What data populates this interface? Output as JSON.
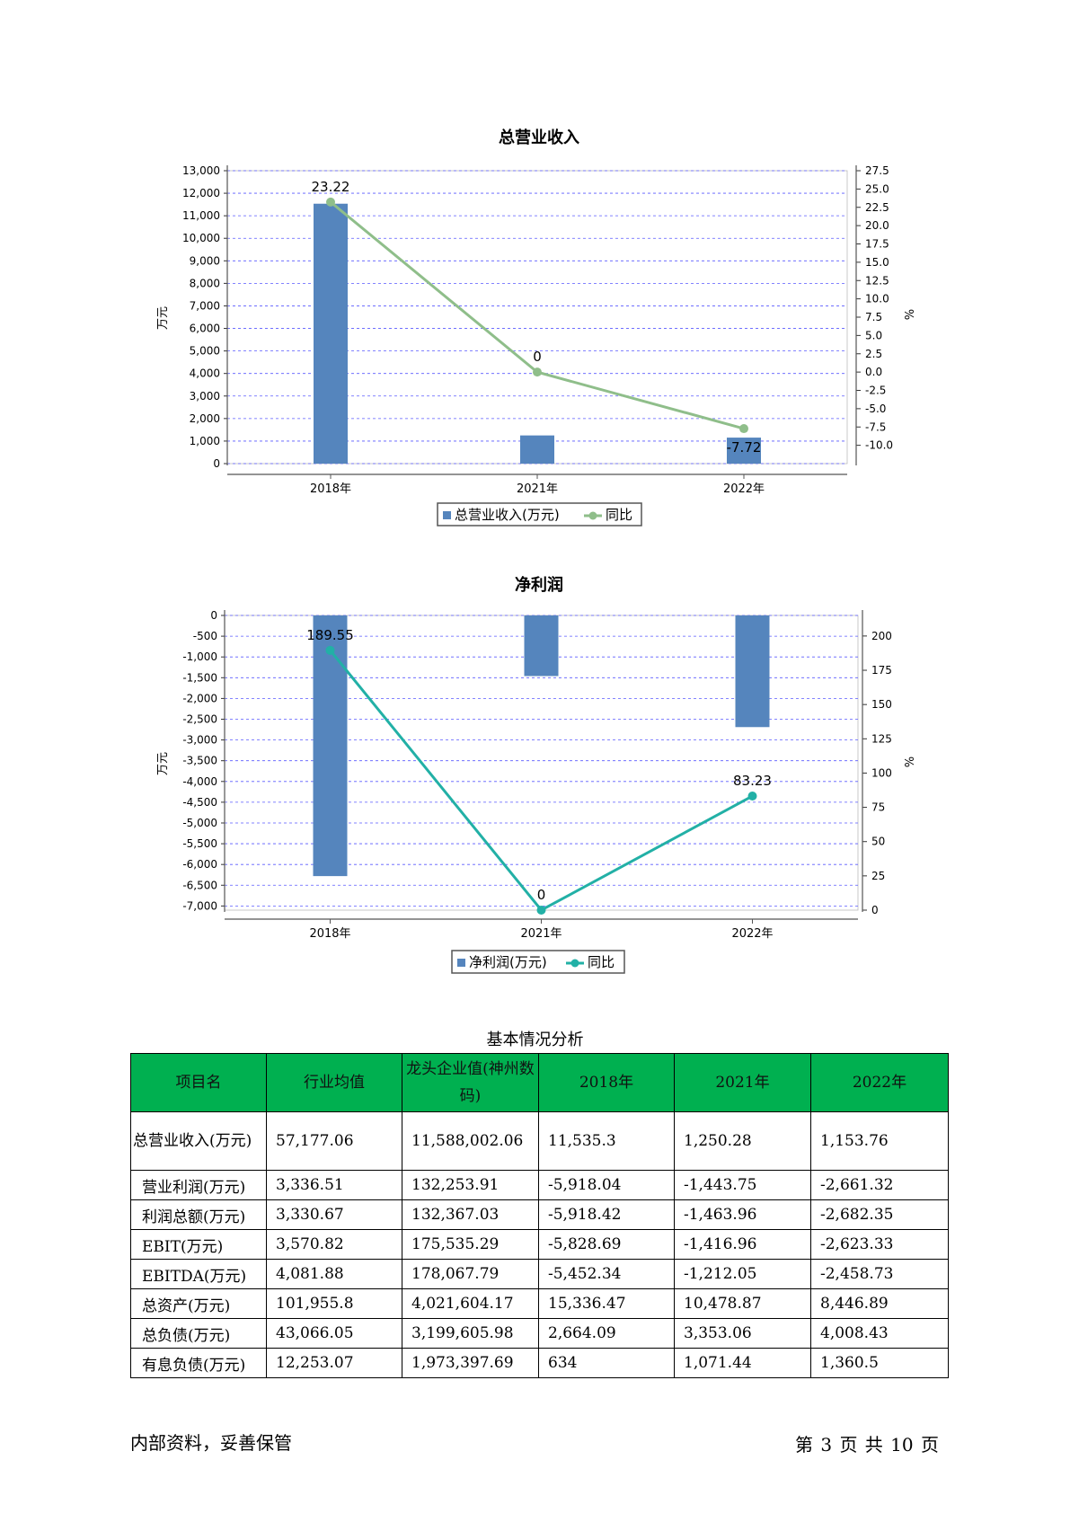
{
  "charts": [
    {
      "title": "总营业收入",
      "y_left_label": "万元",
      "y_right_label": "%",
      "legend_bar": "总营业收入(万元)",
      "legend_line": "同比",
      "bar_color": "#5585bd",
      "line_color": "#8fbe8a"
    },
    {
      "title": "净利润",
      "y_left_label": "万元",
      "y_right_label": "%",
      "legend_bar": "净利润(万元)",
      "legend_line": "同比",
      "bar_color": "#5585bd",
      "line_color": "#22b0a6"
    }
  ],
  "chart_data": [
    {
      "type": "bar",
      "title": "总营业收入",
      "categories": [
        "2018年",
        "2021年",
        "2022年"
      ],
      "series": [
        {
          "name": "总营业收入(万元)",
          "axis": "left",
          "type": "bar",
          "values": [
            11535.3,
            1250.28,
            1153.76
          ]
        },
        {
          "name": "同比",
          "axis": "right",
          "type": "line",
          "values": [
            23.22,
            0,
            -7.72
          ],
          "labels": [
            "23.22",
            "0",
            "-7.72"
          ]
        }
      ],
      "ylabel": "万元",
      "ylabel_right": "%",
      "ylim": [
        0,
        13000
      ],
      "y_ticks": [
        "0",
        "1,000",
        "2,000",
        "3,000",
        "4,000",
        "5,000",
        "6,000",
        "7,000",
        "8,000",
        "9,000",
        "10,000",
        "11,000",
        "12,000",
        "13,000"
      ],
      "ylim_right": [
        -12.5,
        27.5
      ],
      "y_right_ticks": [
        "-10.0",
        "-7.5",
        "-5.0",
        "-2.5",
        "0.0",
        "2.5",
        "5.0",
        "7.5",
        "10.0",
        "12.5",
        "15.0",
        "17.5",
        "20.0",
        "22.5",
        "25.0",
        "27.5"
      ],
      "grid": true,
      "legend": "bottom"
    },
    {
      "type": "bar",
      "title": "净利润",
      "categories": [
        "2018年",
        "2021年",
        "2022年"
      ],
      "series": [
        {
          "name": "净利润(万元)",
          "axis": "left",
          "type": "bar",
          "values": [
            -6280,
            -1460,
            -2690
          ]
        },
        {
          "name": "同比",
          "axis": "right",
          "type": "line",
          "values": [
            189.55,
            0,
            83.23
          ],
          "labels": [
            "189.55",
            "0",
            "83.23"
          ]
        }
      ],
      "ylabel": "万元",
      "ylabel_right": "%",
      "ylim": [
        -7100,
        0
      ],
      "y_ticks": [
        "0",
        "-500",
        "-1,000",
        "-1,500",
        "-2,000",
        "-2,500",
        "-3,000",
        "-3,500",
        "-4,000",
        "-4,500",
        "-5,000",
        "-5,500",
        "-6,000",
        "-6,500",
        "-7,000"
      ],
      "ylim_right": [
        0,
        215
      ],
      "y_right_ticks": [
        "0",
        "25",
        "50",
        "75",
        "100",
        "125",
        "150",
        "175",
        "200"
      ],
      "grid": true,
      "legend": "bottom"
    }
  ],
  "table": {
    "title": "基本情况分析",
    "headers": [
      "项目名",
      "行业均值",
      "龙头企业值(神州数码)",
      "2018年",
      "2021年",
      "2022年"
    ],
    "rows": [
      [
        "总营业收入(万元)",
        "57,177.06",
        "11,588,002.06",
        "11,535.3",
        "1,250.28",
        "1,153.76"
      ],
      [
        "营业利润(万元)",
        "3,336.51",
        "132,253.91",
        "-5,918.04",
        "-1,443.75",
        "-2,661.32"
      ],
      [
        "利润总额(万元)",
        "3,330.67",
        "132,367.03",
        "-5,918.42",
        "-1,463.96",
        "-2,682.35"
      ],
      [
        "EBIT(万元)",
        "3,570.82",
        "175,535.29",
        "-5,828.69",
        "-1,416.96",
        "-2,623.33"
      ],
      [
        "EBITDA(万元)",
        "4,081.88",
        "178,067.79",
        "-5,452.34",
        "-1,212.05",
        "-2,458.73"
      ],
      [
        "总资产(万元)",
        "101,955.8",
        "4,021,604.17",
        "15,336.47",
        "10,478.87",
        "8,446.89"
      ],
      [
        "总负债(万元)",
        "43,066.05",
        "3,199,605.98",
        "2,664.09",
        "3,353.06",
        "4,008.43"
      ],
      [
        "有息负债(万元)",
        "12,253.07",
        "1,973,397.69",
        "634",
        "1,071.44",
        "1,360.5"
      ]
    ],
    "header_color": "#00b050"
  },
  "footer": {
    "left": "内部资料，妥善保管",
    "right": "第 3 页  共 10 页"
  }
}
